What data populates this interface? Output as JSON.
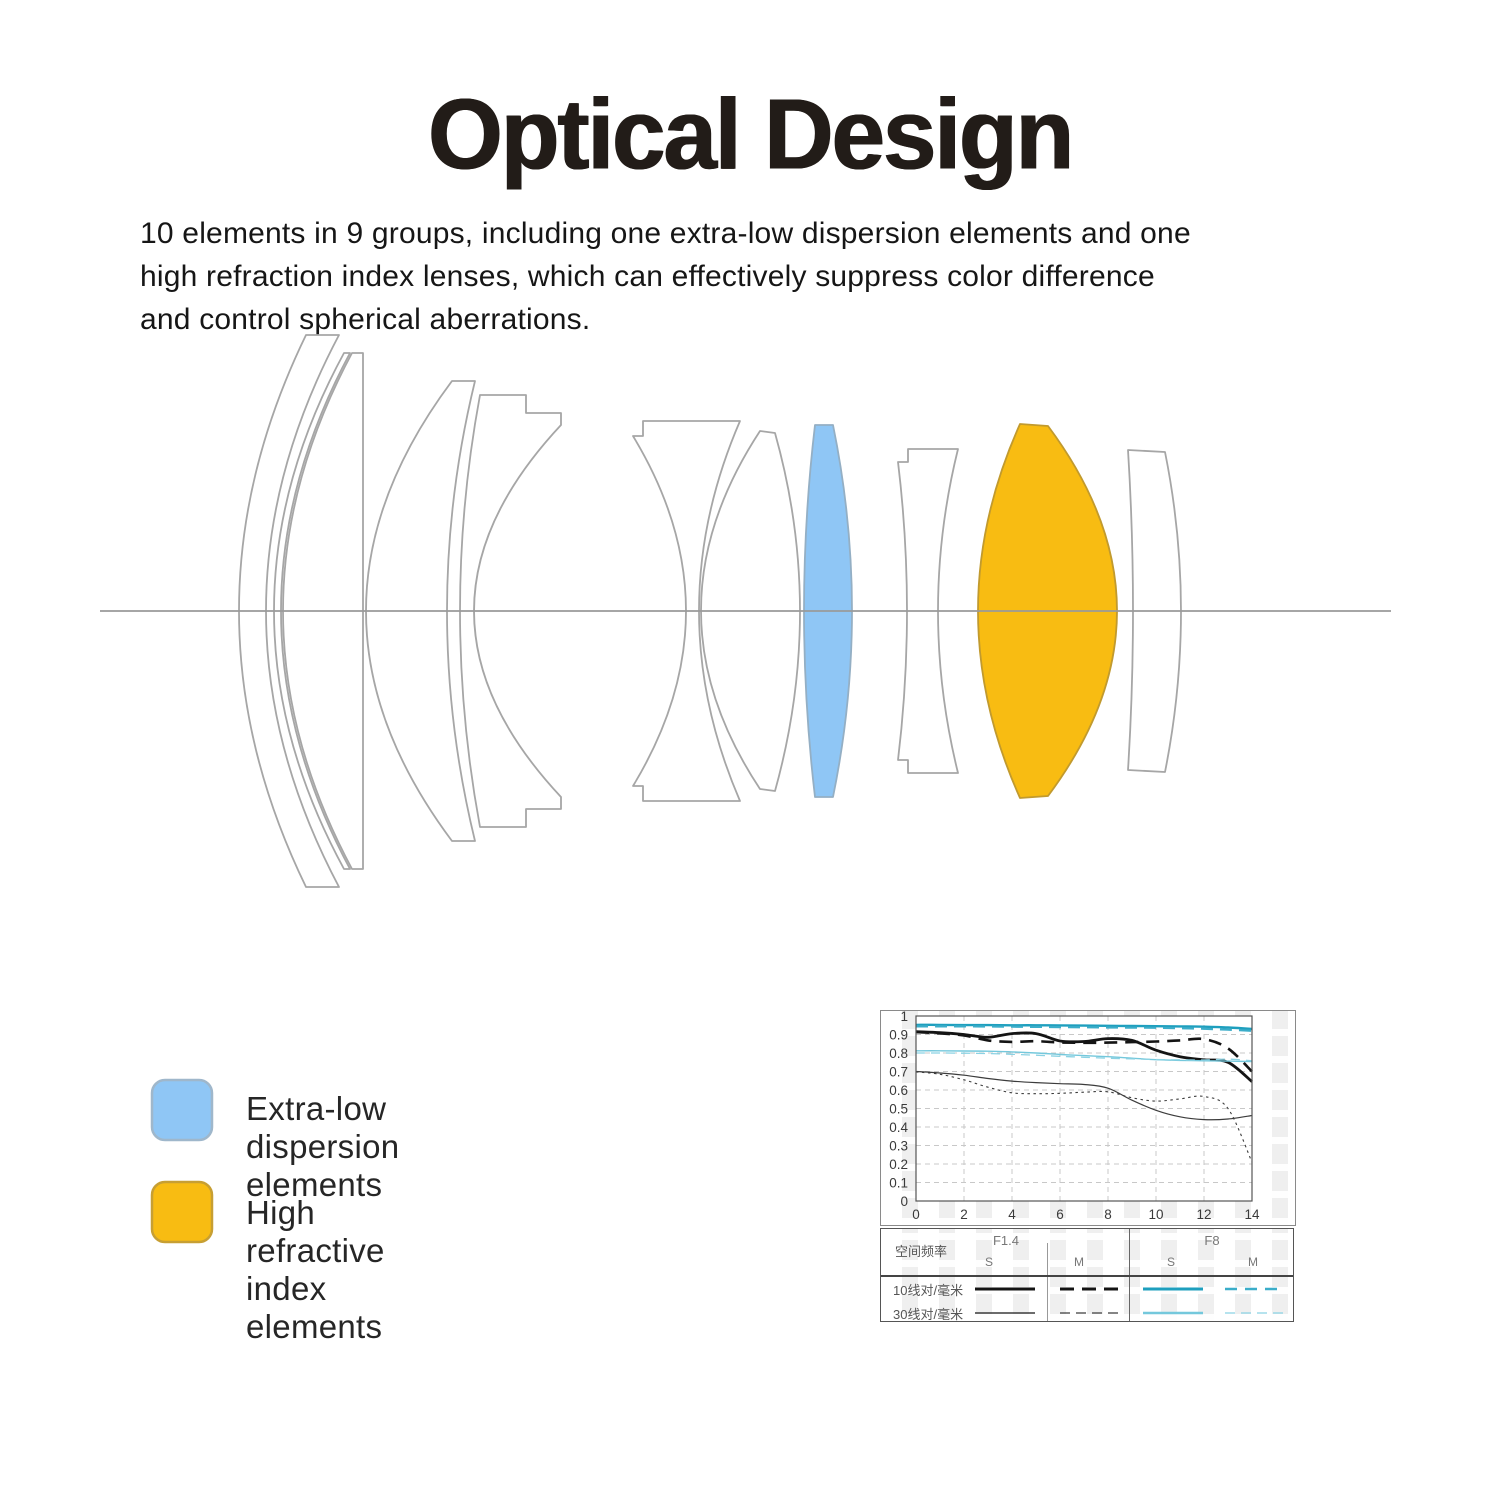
{
  "title": "Optical Design",
  "description_lines": [
    "10 elements in 9 groups, including one extra-low dispersion elements and one",
    "high refraction index lenses, which can effectively suppress color difference",
    "and control spherical aberrations."
  ],
  "legend": {
    "items": [
      {
        "label": "Extra-low dispersion elements",
        "color": "#8FC6F5",
        "border": "#9FB7CB"
      },
      {
        "label": "High refractive index elements",
        "color": "#F8BC12",
        "border": "#C79F33"
      }
    ]
  },
  "lens_diagram": {
    "axis_color": "#9A9A9A",
    "outline_color": "#A6A6A6",
    "elements_total": 10,
    "groups_total": 9
  },
  "chart_data": {
    "type": "line",
    "title": "MTF chart",
    "xlabel": "",
    "ylabel": "",
    "xlim": [
      0,
      14
    ],
    "ylim": [
      0,
      1
    ],
    "grid": true,
    "legend_position": "table-below",
    "x_ticks": [
      "0",
      "2",
      "4",
      "6",
      "8",
      "10",
      "12",
      "14"
    ],
    "y_ticks": [
      "0",
      "0.1",
      "0.2",
      "0.3",
      "0.4",
      "0.5",
      "0.6",
      "0.7",
      "0.8",
      "0.9",
      "1"
    ],
    "x": [
      0,
      1,
      2,
      3,
      4,
      5,
      6,
      7,
      8,
      9,
      10,
      11,
      12,
      13,
      14
    ],
    "series": [
      {
        "name": "F1.4 10lp/mm S",
        "color": "#141414",
        "width": 2.8,
        "dash": "",
        "values": [
          0.915,
          0.91,
          0.9,
          0.885,
          0.905,
          0.905,
          0.865,
          0.862,
          0.878,
          0.868,
          0.815,
          0.78,
          0.763,
          0.75,
          0.645
        ]
      },
      {
        "name": "F1.4 10lp/mm M",
        "color": "#141414",
        "width": 2.6,
        "dash": "13 8",
        "values": [
          0.913,
          0.906,
          0.895,
          0.868,
          0.86,
          0.864,
          0.857,
          0.855,
          0.856,
          0.859,
          0.862,
          0.868,
          0.875,
          0.825,
          0.7
        ]
      },
      {
        "name": "F1.4 30lp/mm S",
        "color": "#3C3C3C",
        "width": 1.2,
        "dash": "",
        "values": [
          0.7,
          0.692,
          0.68,
          0.662,
          0.648,
          0.64,
          0.634,
          0.63,
          0.61,
          0.545,
          0.49,
          0.455,
          0.44,
          0.443,
          0.462
        ]
      },
      {
        "name": "F1.4 30lp/mm M",
        "color": "#3C3C3C",
        "width": 1.1,
        "dash": "2.5 3.5",
        "values": [
          0.698,
          0.685,
          0.655,
          0.615,
          0.585,
          0.58,
          0.582,
          0.588,
          0.59,
          0.558,
          0.54,
          0.552,
          0.565,
          0.5,
          0.21
        ]
      },
      {
        "name": "F8 10lp/mm S",
        "color": "#1E9FBE",
        "width": 2.4,
        "dash": "",
        "values": [
          0.952,
          0.952,
          0.951,
          0.951,
          0.95,
          0.95,
          0.949,
          0.948,
          0.947,
          0.946,
          0.945,
          0.944,
          0.942,
          0.938,
          0.93
        ]
      },
      {
        "name": "F8 10lp/mm M",
        "color": "#3BADC9",
        "width": 2.2,
        "dash": "12 7",
        "values": [
          0.944,
          0.944,
          0.944,
          0.943,
          0.942,
          0.941,
          0.94,
          0.939,
          0.938,
          0.937,
          0.936,
          0.934,
          0.931,
          0.926,
          0.92
        ]
      },
      {
        "name": "F8 30lp/mm S",
        "color": "#74C8DC",
        "width": 1.4,
        "dash": "",
        "values": [
          0.812,
          0.812,
          0.811,
          0.81,
          0.806,
          0.8,
          0.792,
          0.786,
          0.78,
          0.772,
          0.764,
          0.76,
          0.758,
          0.756,
          0.754
        ]
      },
      {
        "name": "F8 30lp/mm M",
        "color": "#8BD2E3",
        "width": 1.3,
        "dash": "9 6",
        "values": [
          0.8,
          0.8,
          0.799,
          0.797,
          0.793,
          0.788,
          0.782,
          0.777,
          0.772,
          0.768,
          0.765,
          0.763,
          0.762,
          0.767,
          0.758
        ]
      }
    ]
  },
  "mtf_table": {
    "corner_label": "空间频率",
    "col_groups": [
      "F1.4",
      "F8"
    ],
    "sub_cols": [
      "S",
      "M",
      "S",
      "M"
    ],
    "row_labels": [
      "10线对/毫米",
      "30线对/毫米"
    ]
  }
}
